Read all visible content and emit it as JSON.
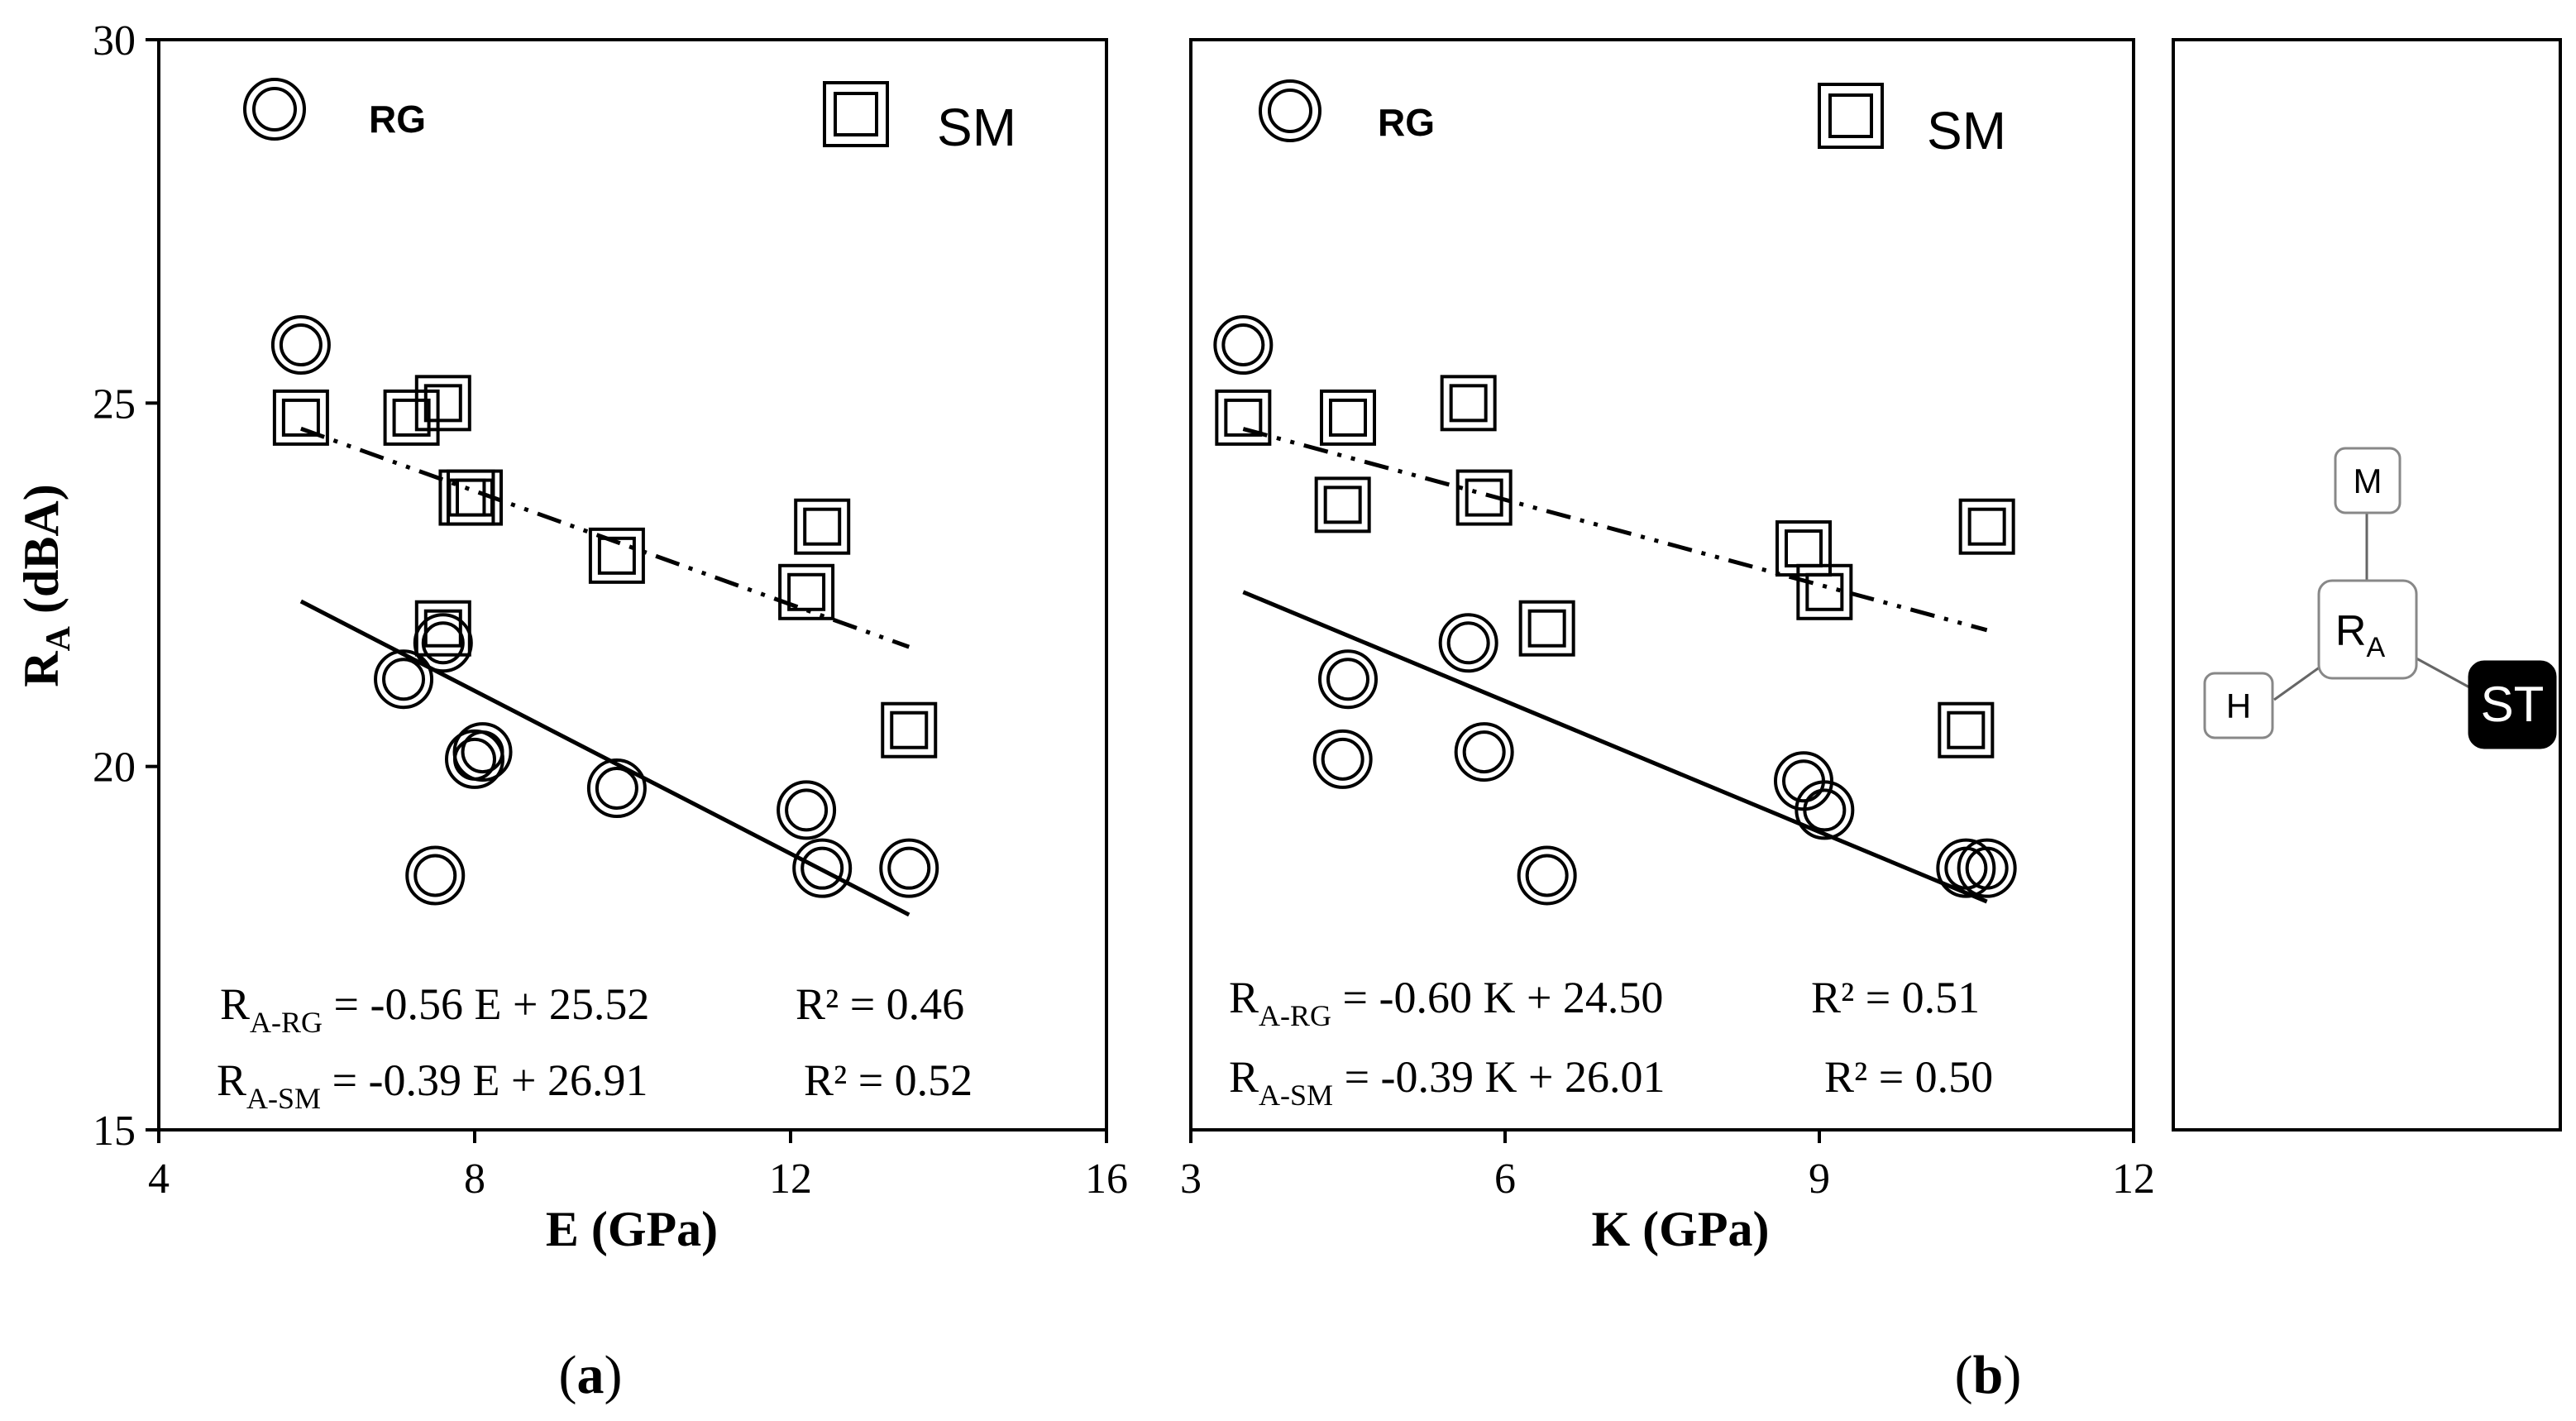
{
  "chart_data": [
    {
      "type": "scatter",
      "panel_label": "(a)",
      "xlabel": "E (GPa)",
      "ylabel": "RA (dBA)",
      "ylabel_main": "R",
      "ylabel_sub": "A",
      "ylabel_rest": " (dBA)",
      "xlim": [
        4,
        16
      ],
      "ylim": [
        15,
        30
      ],
      "xticks": [
        4,
        8,
        12,
        16
      ],
      "yticks": [
        15,
        20,
        25,
        30
      ],
      "legend": [
        {
          "label": "RG",
          "marker": "double-circle"
        },
        {
          "label": "SM",
          "marker": "double-square"
        }
      ],
      "series": [
        {
          "name": "RG",
          "marker": "double-circle",
          "points": [
            [
              5.8,
              25.8
            ],
            [
              7.1,
              21.2
            ],
            [
              7.6,
              21.7
            ],
            [
              7.5,
              18.5
            ],
            [
              8.0,
              20.1
            ],
            [
              8.1,
              20.2
            ],
            [
              9.8,
              19.7
            ],
            [
              12.2,
              19.4
            ],
            [
              12.4,
              18.6
            ],
            [
              13.5,
              18.6
            ]
          ]
        },
        {
          "name": "SM",
          "marker": "double-square",
          "points": [
            [
              5.8,
              24.8
            ],
            [
              7.2,
              24.8
            ],
            [
              7.6,
              25.0
            ],
            [
              7.9,
              23.7
            ],
            [
              8.0,
              23.7
            ],
            [
              7.6,
              21.9
            ],
            [
              9.8,
              22.9
            ],
            [
              12.2,
              22.4
            ],
            [
              12.4,
              23.3
            ],
            [
              13.5,
              20.5
            ]
          ]
        }
      ],
      "fits": [
        {
          "series": "RG",
          "style": "solid",
          "slope": -0.56,
          "intercept": 25.52,
          "x_range": [
            5.8,
            13.5
          ]
        },
        {
          "series": "SM",
          "style": "dash-dot-dot",
          "slope": -0.39,
          "intercept": 26.91,
          "x_range": [
            5.8,
            13.5
          ]
        }
      ],
      "equations": [
        {
          "lhs_main": "R",
          "lhs_sub": "A-RG",
          "rhs": " = -0.56 E + 25.52",
          "r2_label": "R² = 0.46"
        },
        {
          "lhs_main": "R",
          "lhs_sub": "A-SM",
          "rhs": " = -0.39 E + 26.91",
          "r2_label": "R² = 0.52"
        }
      ]
    },
    {
      "type": "scatter",
      "panel_label": "(b)",
      "xlabel": "K (GPa)",
      "xlim": [
        3,
        12
      ],
      "ylim": [
        15,
        30
      ],
      "xticks": [
        3,
        6,
        9,
        12
      ],
      "legend": [
        {
          "label": "RG",
          "marker": "double-circle"
        },
        {
          "label": "SM",
          "marker": "double-square"
        }
      ],
      "series": [
        {
          "name": "RG",
          "marker": "double-circle",
          "points": [
            [
              3.5,
              25.8
            ],
            [
              4.5,
              21.2
            ],
            [
              4.45,
              20.1
            ],
            [
              5.65,
              21.7
            ],
            [
              5.8,
              20.2
            ],
            [
              6.4,
              18.5
            ],
            [
              8.85,
              19.8
            ],
            [
              9.05,
              19.4
            ],
            [
              10.4,
              18.6
            ],
            [
              10.6,
              18.6
            ]
          ]
        },
        {
          "name": "SM",
          "marker": "double-square",
          "points": [
            [
              3.5,
              24.8
            ],
            [
              4.5,
              24.8
            ],
            [
              4.45,
              23.6
            ],
            [
              5.65,
              25.0
            ],
            [
              5.8,
              23.7
            ],
            [
              6.4,
              21.9
            ],
            [
              8.85,
              23.0
            ],
            [
              9.05,
              22.4
            ],
            [
              10.4,
              20.5
            ],
            [
              10.6,
              23.3
            ]
          ]
        }
      ],
      "fits": [
        {
          "series": "RG",
          "style": "solid",
          "slope": -0.6,
          "intercept": 24.5,
          "x_range": [
            3.5,
            10.6
          ]
        },
        {
          "series": "SM",
          "style": "dash-dot-dot",
          "slope": -0.39,
          "intercept": 26.01,
          "x_range": [
            3.5,
            10.6
          ]
        }
      ],
      "equations": [
        {
          "lhs_main": "R",
          "lhs_sub": "A-RG",
          "rhs": " = -0.60 K + 24.50",
          "r2_label": "R² = 0.51"
        },
        {
          "lhs_main": "R",
          "lhs_sub": "A-SM",
          "rhs": " = -0.39 K + 26.01",
          "r2_label": "R² = 0.50"
        }
      ]
    }
  ],
  "diagram": {
    "center_main": "R",
    "center_sub": "A",
    "nodes": {
      "top": "M",
      "left": "H",
      "right": "ST"
    },
    "highlighted": "ST"
  }
}
